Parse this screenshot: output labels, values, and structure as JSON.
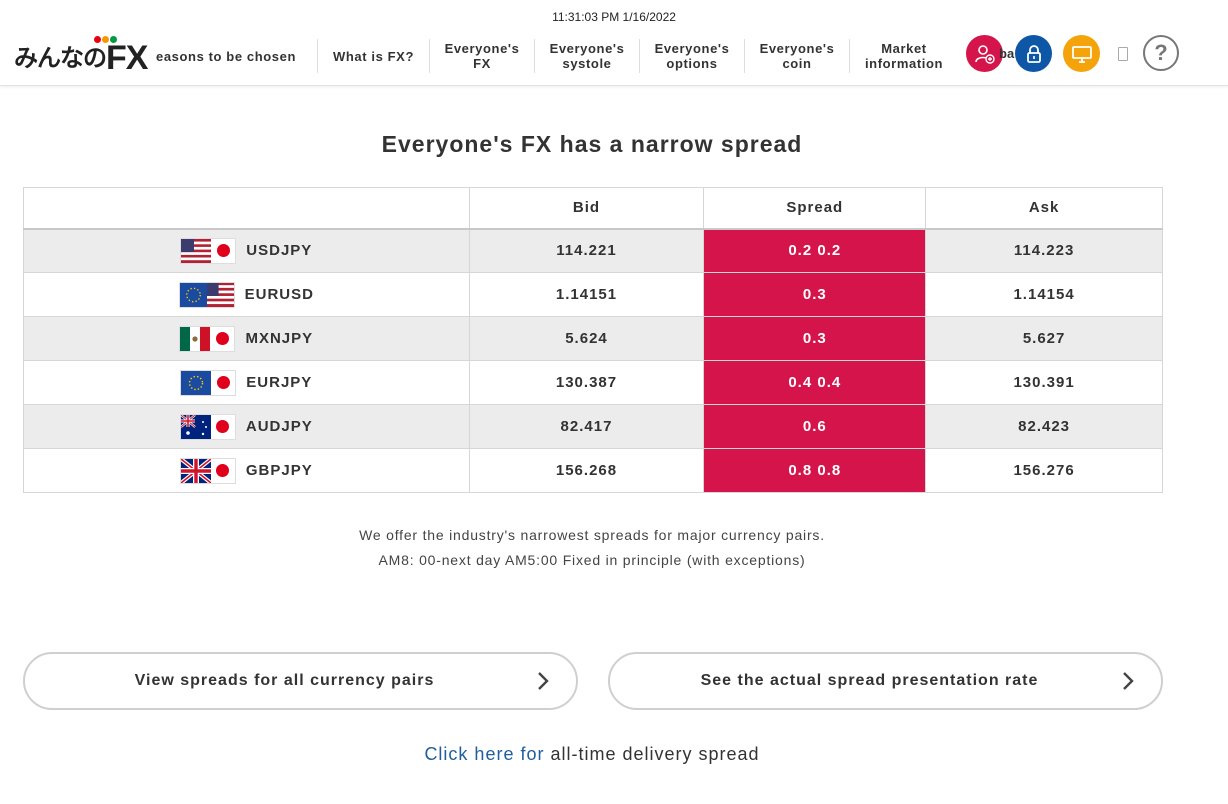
{
  "clock": "11:31:03 PM 1/16/2022",
  "logo": {
    "jp": "みんなの",
    "fx": "FX"
  },
  "nav": [
    {
      "label": "easons to be chosen"
    },
    {
      "label": "What is FX?"
    },
    {
      "label": "Everyone's FX"
    },
    {
      "label": "Everyone's systole"
    },
    {
      "label": "Everyone's options"
    },
    {
      "label": "Everyone's coin"
    },
    {
      "label": "Market information"
    }
  ],
  "header_icons": {
    "partial_text": "ba",
    "help_symbol": "?",
    "colors": {
      "red": "#d4144a",
      "blue": "#0d57a6",
      "orange": "#f4a30b"
    }
  },
  "headline": "Everyone's FX has a narrow spread",
  "table": {
    "headers": {
      "pair": "",
      "bid": "Bid",
      "spread": "Spread",
      "ask": "Ask"
    },
    "rows": [
      {
        "pair": "USDJPY",
        "bid": "114.221",
        "spread": "0.2 0.2",
        "ask": "114.223"
      },
      {
        "pair": "EURUSD",
        "bid": "1.14151",
        "spread": "0.3",
        "ask": "1.14154"
      },
      {
        "pair": "MXNJPY",
        "bid": "5.624",
        "spread": "0.3",
        "ask": "5.627"
      },
      {
        "pair": "EURJPY",
        "bid": "130.387",
        "spread": "0.4 0.4",
        "ask": "130.391"
      },
      {
        "pair": "AUDJPY",
        "bid": "82.417",
        "spread": "0.6",
        "ask": "82.423"
      },
      {
        "pair": "GBPJPY",
        "bid": "156.268",
        "spread": "0.8 0.8",
        "ask": "156.276"
      }
    ],
    "spread_color": "#d4144a"
  },
  "notes": {
    "line1": "We offer the industry's narrowest spreads for major currency pairs.",
    "line2": "AM8: 00-next day AM5:00 Fixed in principle (with exceptions)"
  },
  "buttons": {
    "all_pairs": "View spreads for all currency pairs",
    "actual_rate": "See the actual spread presentation rate"
  },
  "footer_link": {
    "link_text": "Click here for",
    "rest_text": " all-time delivery spread"
  }
}
